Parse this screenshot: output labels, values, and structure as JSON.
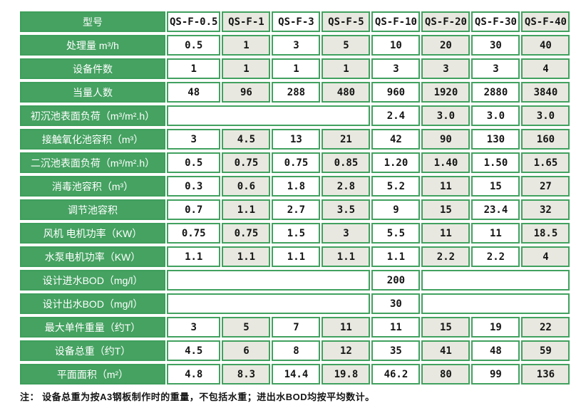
{
  "page": {
    "footnote": "注： 设备总重为按A3钢板制作时的重量，不包括水重；进出水BOD均按平均数计。"
  },
  "colors": {
    "label_green": "#45a261",
    "border_green": "#3f9e5c",
    "tint_cell": "#e8e8e0",
    "cell_white": "#ffffff",
    "label_text": "#ffffff",
    "value_text": "#141414"
  },
  "table": {
    "corner_label": "型号",
    "columns": [
      "QS-F-0.5",
      "QS-F-1",
      "QS-F-3",
      "QS-F-5",
      "QS-F-10",
      "QS-F-20",
      "QS-F-30",
      "QS-F-40"
    ],
    "rows": [
      {
        "label": "处理量 m³/h",
        "cells": [
          {
            "v": "0.5"
          },
          {
            "v": "1"
          },
          {
            "v": "3"
          },
          {
            "v": "5"
          },
          {
            "v": "10"
          },
          {
            "v": "20"
          },
          {
            "v": "30"
          },
          {
            "v": "40"
          }
        ]
      },
      {
        "label": "设备件数",
        "cells": [
          {
            "v": "1"
          },
          {
            "v": "1"
          },
          {
            "v": "1"
          },
          {
            "v": "1"
          },
          {
            "v": "3"
          },
          {
            "v": "3"
          },
          {
            "v": "3"
          },
          {
            "v": "4"
          }
        ]
      },
      {
        "label": "当量人数",
        "cells": [
          {
            "v": "48"
          },
          {
            "v": "96"
          },
          {
            "v": "288"
          },
          {
            "v": "480"
          },
          {
            "v": "960"
          },
          {
            "v": "1920"
          },
          {
            "v": "2880"
          },
          {
            "v": "3840"
          }
        ]
      },
      {
        "label": "初沉池表面负荷（m³/m².h）",
        "cells": [
          {
            "v": "",
            "span": 4
          },
          {
            "v": "2.4"
          },
          {
            "v": "3.0"
          },
          {
            "v": "3.0"
          },
          {
            "v": "3.0"
          }
        ]
      },
      {
        "label": "接触氧化池容积（m³）",
        "cells": [
          {
            "v": "3"
          },
          {
            "v": "4.5"
          },
          {
            "v": "13"
          },
          {
            "v": "21"
          },
          {
            "v": "42"
          },
          {
            "v": "90"
          },
          {
            "v": "130"
          },
          {
            "v": "160"
          }
        ]
      },
      {
        "label": "二沉池表面负荷（m³/m².h）",
        "cells": [
          {
            "v": "0.5"
          },
          {
            "v": "0.75"
          },
          {
            "v": "0.75"
          },
          {
            "v": "0.85"
          },
          {
            "v": "1.20"
          },
          {
            "v": "1.40"
          },
          {
            "v": "1.50"
          },
          {
            "v": "1.65"
          }
        ]
      },
      {
        "label": "消毒池容积（m³）",
        "cells": [
          {
            "v": "0.3"
          },
          {
            "v": "0.6"
          },
          {
            "v": "1.8"
          },
          {
            "v": "2.8"
          },
          {
            "v": "5.2"
          },
          {
            "v": "11"
          },
          {
            "v": "15"
          },
          {
            "v": "27"
          }
        ]
      },
      {
        "label": "调节池容积",
        "cells": [
          {
            "v": "0.7"
          },
          {
            "v": "1.1"
          },
          {
            "v": "2.7"
          },
          {
            "v": "3.5"
          },
          {
            "v": "9"
          },
          {
            "v": "15"
          },
          {
            "v": "23.4"
          },
          {
            "v": "32"
          }
        ]
      },
      {
        "label": "风机 电机功率（KW）",
        "cells": [
          {
            "v": "0.75"
          },
          {
            "v": "0.75"
          },
          {
            "v": "1.5"
          },
          {
            "v": "3"
          },
          {
            "v": "5.5"
          },
          {
            "v": "11"
          },
          {
            "v": "11"
          },
          {
            "v": "18.5"
          }
        ]
      },
      {
        "label": "水泵电机功率（KW）",
        "cells": [
          {
            "v": "1.1"
          },
          {
            "v": "1.1"
          },
          {
            "v": "1.1"
          },
          {
            "v": "1.1"
          },
          {
            "v": "1.1"
          },
          {
            "v": "2.2"
          },
          {
            "v": "2.2"
          },
          {
            "v": "4"
          }
        ]
      },
      {
        "label": "设计进水BOD（mg/l）",
        "cells": [
          {
            "v": "",
            "span": 4
          },
          {
            "v": "200"
          },
          {
            "v": "",
            "span": 3
          }
        ]
      },
      {
        "label": "设计出水BOD（mg/l）",
        "cells": [
          {
            "v": "",
            "span": 4
          },
          {
            "v": "30"
          },
          {
            "v": "",
            "span": 3
          }
        ]
      },
      {
        "label": "最大单件重量（约T）",
        "cells": [
          {
            "v": "3"
          },
          {
            "v": "5"
          },
          {
            "v": "7"
          },
          {
            "v": "11"
          },
          {
            "v": "11"
          },
          {
            "v": "15"
          },
          {
            "v": "19"
          },
          {
            "v": "22"
          }
        ]
      },
      {
        "label": "设备总重（约T）",
        "cells": [
          {
            "v": "4.5"
          },
          {
            "v": "6"
          },
          {
            "v": "8"
          },
          {
            "v": "12"
          },
          {
            "v": "35"
          },
          {
            "v": "41"
          },
          {
            "v": "48"
          },
          {
            "v": "59"
          }
        ]
      },
      {
        "label": "平面面积（m²）",
        "cells": [
          {
            "v": "4.8"
          },
          {
            "v": "8.3"
          },
          {
            "v": "14.4"
          },
          {
            "v": "19.8"
          },
          {
            "v": "46.2"
          },
          {
            "v": "80"
          },
          {
            "v": "99"
          },
          {
            "v": "136"
          }
        ]
      }
    ]
  }
}
